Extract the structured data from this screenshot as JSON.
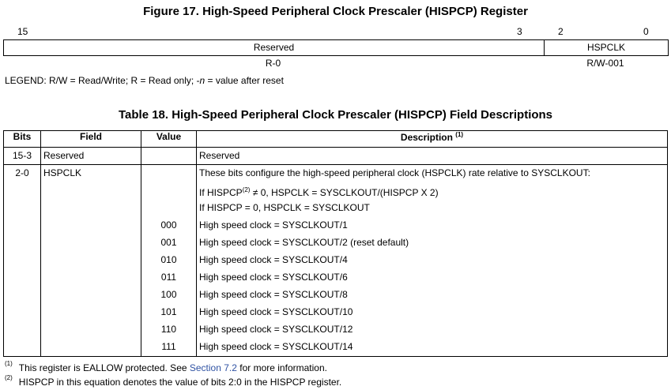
{
  "figure": {
    "title": "Figure 17.  High-Speed Peripheral Clock Prescaler (HISPCP) Register",
    "bit_numbers": [
      "15",
      "3",
      "2",
      "0"
    ],
    "fields": [
      {
        "name": "Reserved",
        "access": "R-0"
      },
      {
        "name": "HSPCLK",
        "access": "R/W-001"
      }
    ],
    "legend": {
      "prefix": "LEGEND: R/W = Read/Write; R = Read only; -",
      "italic": "n",
      "suffix": " = value after reset"
    }
  },
  "table": {
    "title": "Table 18. High-Speed Peripheral Clock Prescaler (HISPCP) Field Descriptions",
    "headers": {
      "bits": "Bits",
      "field": "Field",
      "value": "Value",
      "description": "Description",
      "description_sup": "(1)"
    },
    "rows": [
      {
        "bits": "15-3",
        "field": "Reserved",
        "description": "Reserved"
      },
      {
        "bits": "2-0",
        "field": "HSPCLK",
        "intro": [
          "These bits configure the high-speed peripheral clock (HSPCLK) rate relative to SYSCLKOUT:",
          "If HISPCP",
          "(2)",
          " ≠ 0, HSPCLK = SYSCLKOUT/(HISPCP X 2)",
          "If HISPCP = 0, HSPCLK = SYSCLKOUT"
        ],
        "values": [
          {
            "value": "000",
            "description": "High speed clock = SYSCLKOUT/1"
          },
          {
            "value": "001",
            "description": "High speed clock = SYSCLKOUT/2 (reset default)"
          },
          {
            "value": "010",
            "description": "High speed clock = SYSCLKOUT/4"
          },
          {
            "value": "011",
            "description": "High speed clock = SYSCLKOUT/6"
          },
          {
            "value": "100",
            "description": "High speed clock = SYSCLKOUT/8"
          },
          {
            "value": "101",
            "description": "High speed clock = SYSCLKOUT/10"
          },
          {
            "value": "110",
            "description": "High speed clock = SYSCLKOUT/12"
          },
          {
            "value": "111",
            "description": "High speed clock = SYSCLKOUT/14"
          }
        ]
      }
    ]
  },
  "footnotes": [
    {
      "mark": "(1)",
      "text_before": "This register is EALLOW protected. See ",
      "link": "Section 7.2",
      "text_after": " for more information."
    },
    {
      "mark": "(2)",
      "text": "HISPCP in this equation denotes the value of bits 2:0 in the HISPCP register."
    }
  ],
  "colors": {
    "link": "#2f52a3"
  }
}
